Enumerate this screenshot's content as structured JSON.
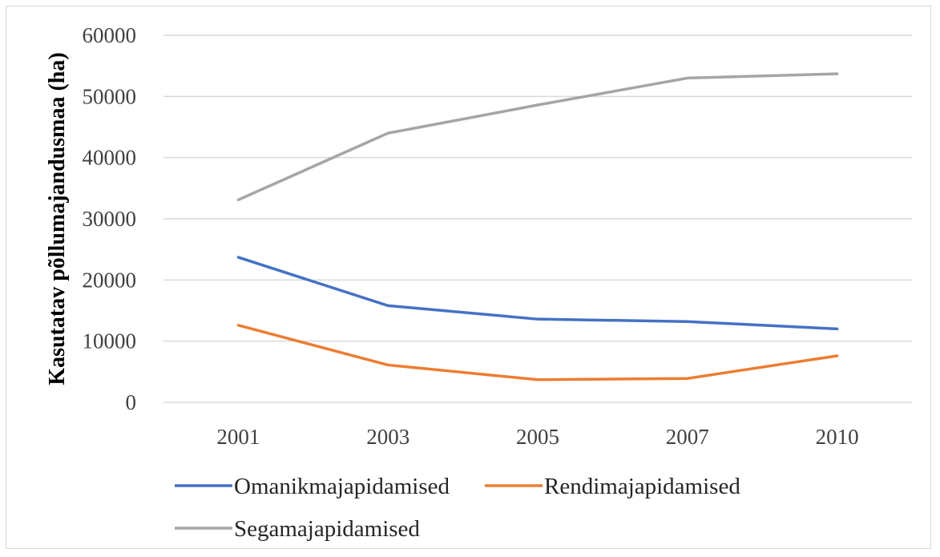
{
  "chart_data": {
    "type": "line",
    "title": "",
    "xlabel": "",
    "ylabel": "Kasutatav põllumajandusmaa (ha)",
    "categories": [
      "2001",
      "2003",
      "2005",
      "2007",
      "2010"
    ],
    "ylim": [
      0,
      60000
    ],
    "yticks": [
      0,
      10000,
      20000,
      30000,
      40000,
      50000,
      60000
    ],
    "grid": "horizontal",
    "legend_position": "bottom",
    "series": [
      {
        "name": "Omanikmajapidamised",
        "color": "#4472c4",
        "values": [
          23700,
          15800,
          13600,
          13200,
          12000
        ]
      },
      {
        "name": "Rendimajapidamised",
        "color": "#ed7d31",
        "values": [
          12600,
          6100,
          3700,
          3900,
          7600
        ]
      },
      {
        "name": "Segamajapidamised",
        "color": "#a5a5a5",
        "values": [
          33100,
          44000,
          48600,
          53000,
          53700
        ]
      }
    ]
  }
}
